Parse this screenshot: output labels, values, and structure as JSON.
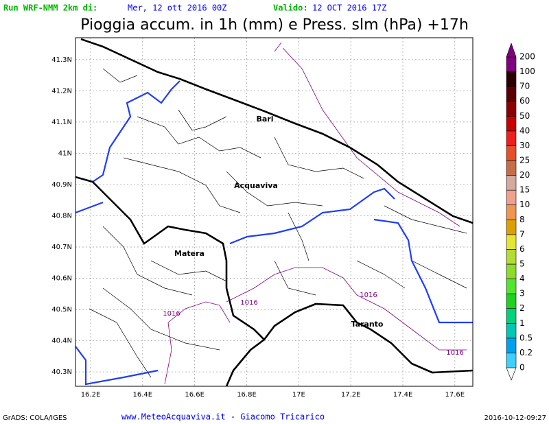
{
  "header": {
    "run_label": "Run WRF-NMM 2km di:",
    "run_date": "Mer, 12 ott 2016 00Z",
    "valid_label": "Valido:",
    "valid_date": "12 OCT 2016 17Z",
    "title": "Pioggia accum. in 1h (mm) e Press. slm (hPa) +17h"
  },
  "map": {
    "xlim": [
      16.142,
      17.669
    ],
    "ylim": [
      40.254,
      41.37
    ],
    "xticks": [
      {
        "value": 16.2,
        "label": "16.2E"
      },
      {
        "value": 16.4,
        "label": "16.4E"
      },
      {
        "value": 16.6,
        "label": "16.6E"
      },
      {
        "value": 16.8,
        "label": "16.8E"
      },
      {
        "value": 17,
        "label": "17E"
      },
      {
        "value": 17.2,
        "label": "17.2E"
      },
      {
        "value": 17.4,
        "label": "17.4E"
      },
      {
        "value": 17.6,
        "label": "17.6E"
      }
    ],
    "yticks": [
      {
        "value": 40.3,
        "label": "40.3N"
      },
      {
        "value": 40.4,
        "label": "40.4N"
      },
      {
        "value": 40.5,
        "label": "40.5N"
      },
      {
        "value": 40.6,
        "label": "40.6N"
      },
      {
        "value": 40.7,
        "label": "40.7N"
      },
      {
        "value": 40.8,
        "label": "40.8N"
      },
      {
        "value": 40.9,
        "label": "40.9N"
      },
      {
        "value": 41,
        "label": "41N"
      },
      {
        "value": 41.1,
        "label": "41.1N"
      },
      {
        "value": 41.2,
        "label": "41.2N"
      },
      {
        "value": 41.3,
        "label": "41.3N"
      }
    ],
    "grid": true,
    "cities": [
      "Bari",
      "Acquaviva",
      "Matera",
      "Taranto"
    ],
    "isobar_labels": [
      "1016",
      "1016",
      "1016",
      "1016"
    ]
  },
  "colorbar": {
    "levels": [
      0,
      0.2,
      0.5,
      1,
      2,
      3,
      4,
      5,
      6,
      7,
      8,
      10,
      15,
      20,
      25,
      30,
      40,
      50,
      60,
      70,
      100,
      200
    ],
    "colors": [
      "#ffffff",
      "#3cd2ff",
      "#00a0f0",
      "#00c8b4",
      "#00d27d",
      "#1ed21e",
      "#50e632",
      "#8cdc28",
      "#b4dc32",
      "#e6e632",
      "#dca000",
      "#f09650",
      "#f0a08c",
      "#d2aaa0",
      "#c86e46",
      "#e65028",
      "#f01e1e",
      "#c80000",
      "#8c0000",
      "#5a0000",
      "#2a0000",
      "#800080"
    ]
  },
  "footer": {
    "software": "GrADS: COLA/IGES",
    "credit": "www.MeteoAcquaviva.it - Giacomo Tricarico",
    "timestamp": "2016-10-12-09:27"
  }
}
